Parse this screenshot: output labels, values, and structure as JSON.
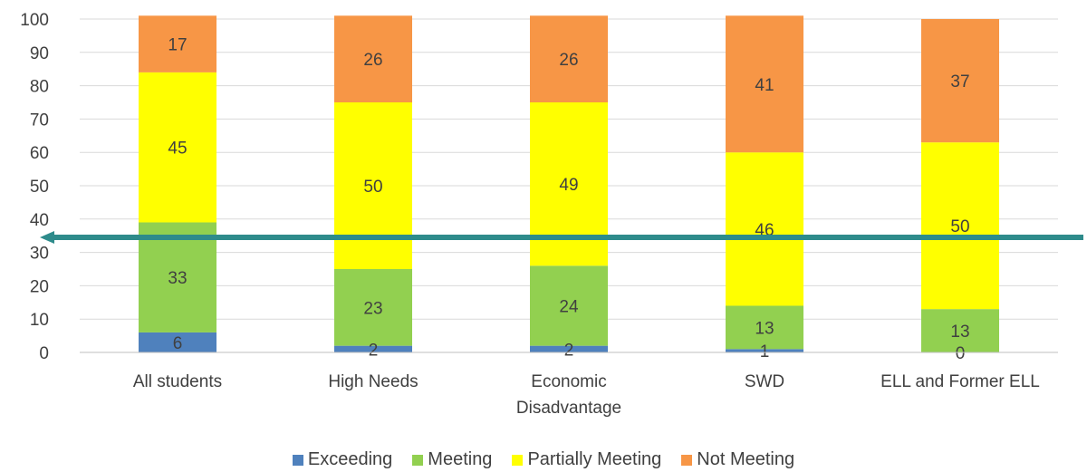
{
  "chart_data": {
    "type": "bar",
    "stacked": true,
    "categories": [
      [
        "All students"
      ],
      [
        "High Needs"
      ],
      [
        "Economic",
        "Disadvantage"
      ],
      [
        "SWD"
      ],
      [
        "ELL and Former ELL"
      ]
    ],
    "series": [
      {
        "name": "Exceeding",
        "color": "#4f81bd",
        "values": [
          6,
          2,
          2,
          1,
          0
        ]
      },
      {
        "name": "Meeting",
        "color": "#92d050",
        "values": [
          33,
          23,
          24,
          13,
          13
        ]
      },
      {
        "name": "Partially Meeting",
        "color": "#ffff00",
        "values": [
          45,
          50,
          49,
          46,
          50
        ]
      },
      {
        "name": "Not Meeting",
        "color": "#f79646",
        "values": [
          17,
          26,
          26,
          41,
          37
        ]
      }
    ],
    "ylim": [
      0,
      100
    ],
    "yticks": [
      0,
      10,
      20,
      30,
      40,
      50,
      60,
      70,
      80,
      90,
      100
    ],
    "grid": true,
    "legend_position": "bottom",
    "reference_line": {
      "value": 34.5,
      "color": "#2e8b8b",
      "style": "arrow"
    }
  }
}
